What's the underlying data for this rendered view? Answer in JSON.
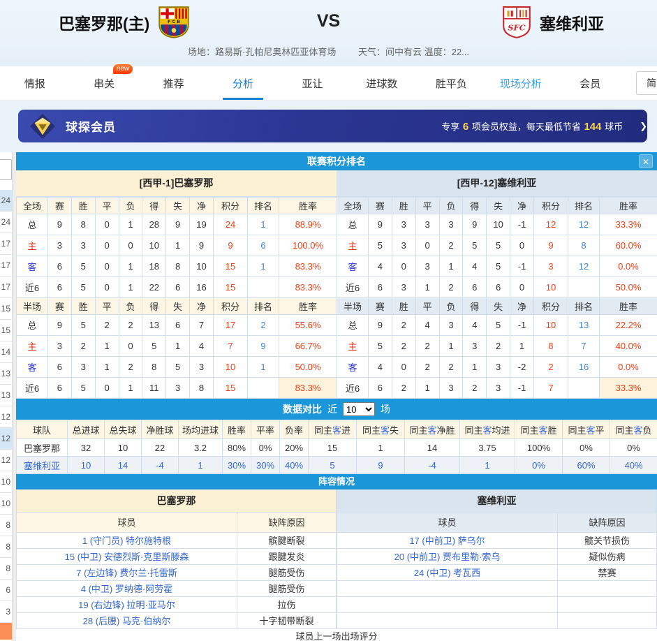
{
  "header": {
    "home_team": "巴塞罗那(主)",
    "vs": "VS",
    "away_team": "塞维利亚",
    "venue": "场地：路易斯·孔帕尼奥林匹亚体育场",
    "weather": "天气：间中有云 温度：22..."
  },
  "nav": {
    "tabs": [
      {
        "label": "情报",
        "cls": ""
      },
      {
        "label": "串关",
        "cls": "",
        "badge": "new"
      },
      {
        "label": "推荐",
        "cls": ""
      },
      {
        "label": "分析",
        "cls": "active"
      },
      {
        "label": "亚让",
        "cls": ""
      },
      {
        "label": "进球数",
        "cls": ""
      },
      {
        "label": "胜平负",
        "cls": ""
      },
      {
        "label": "现场分析",
        "cls": "live"
      },
      {
        "label": "会员",
        "cls": ""
      }
    ],
    "lang": "简"
  },
  "banner": {
    "title": "球探会员",
    "p1": "专享 ",
    "n1": "6",
    "p2": " 项会员权益，每天最低节省 ",
    "n2": "144",
    "p3": " 球币",
    "arrow": "❯"
  },
  "sidebar": {
    "items": [
      {
        "v": "24",
        "cls": "hl"
      },
      {
        "v": "24",
        "cls": ""
      },
      {
        "v": "17",
        "cls": ""
      },
      {
        "v": "17",
        "cls": ""
      },
      {
        "v": "17",
        "cls": ""
      },
      {
        "v": "15",
        "cls": ""
      },
      {
        "v": "15",
        "cls": ""
      },
      {
        "v": "14",
        "cls": ""
      },
      {
        "v": "13",
        "cls": ""
      },
      {
        "v": "13",
        "cls": ""
      },
      {
        "v": "12",
        "cls": ""
      },
      {
        "v": "12",
        "cls": "hl"
      },
      {
        "v": "12",
        "cls": ""
      },
      {
        "v": "10",
        "cls": ""
      },
      {
        "v": "10",
        "cls": ""
      },
      {
        "v": "8",
        "cls": ""
      },
      {
        "v": "8",
        "cls": ""
      },
      {
        "v": "8",
        "cls": ""
      },
      {
        "v": "6",
        "cls": ""
      },
      {
        "v": "3",
        "cls": ""
      }
    ]
  },
  "standings": {
    "title": "联赛积分排名",
    "close": "✕",
    "sides": [
      {
        "team": "[西甲-1]巴塞罗那",
        "cls": "home",
        "sections": [
          {
            "head": [
              "全场",
              "赛",
              "胜",
              "平",
              "负",
              "得",
              "失",
              "净",
              "积分",
              "排名",
              "胜率"
            ],
            "rows": [
              {
                "label": "总",
                "lcls": "",
                "nums": [
                  "9",
                  "8",
                  "0",
                  "1",
                  "28",
                  "9",
                  "19"
                ],
                "pts": "24",
                "rank": "1",
                "rate": "88.9%",
                "rcls": ""
              },
              {
                "label": "主",
                "lcls": "red",
                "nums": [
                  "3",
                  "3",
                  "0",
                  "0",
                  "10",
                  "1",
                  "9"
                ],
                "pts": "9",
                "rank": "6",
                "rate": "100.0%",
                "rcls": ""
              },
              {
                "label": "客",
                "lcls": "blue",
                "nums": [
                  "6",
                  "5",
                  "0",
                  "1",
                  "18",
                  "8",
                  "10"
                ],
                "pts": "15",
                "rank": "1",
                "rate": "83.3%",
                "rcls": ""
              },
              {
                "label": "近6",
                "lcls": "",
                "nums": [
                  "6",
                  "5",
                  "0",
                  "1",
                  "22",
                  "6",
                  "16"
                ],
                "pts": "15",
                "rank": "",
                "rate": "83.3%",
                "rcls": ""
              }
            ]
          },
          {
            "head": [
              "半场",
              "赛",
              "胜",
              "平",
              "负",
              "得",
              "失",
              "净",
              "积分",
              "排名",
              "胜率"
            ],
            "rows": [
              {
                "label": "总",
                "lcls": "",
                "nums": [
                  "9",
                  "5",
                  "2",
                  "2",
                  "13",
                  "6",
                  "7"
                ],
                "pts": "17",
                "rank": "2",
                "rate": "55.6%",
                "rcls": ""
              },
              {
                "label": "主",
                "lcls": "red",
                "nums": [
                  "3",
                  "2",
                  "1",
                  "0",
                  "5",
                  "1",
                  "4"
                ],
                "pts": "7",
                "rank": "9",
                "rate": "66.7%",
                "rcls": ""
              },
              {
                "label": "客",
                "lcls": "blue",
                "nums": [
                  "6",
                  "3",
                  "1",
                  "2",
                  "8",
                  "5",
                  "3"
                ],
                "pts": "10",
                "rank": "1",
                "rate": "50.0%",
                "rcls": ""
              },
              {
                "label": "近6",
                "lcls": "",
                "nums": [
                  "6",
                  "5",
                  "0",
                  "1",
                  "11",
                  "3",
                  "8"
                ],
                "pts": "15",
                "rank": "",
                "rate": "83.3%",
                "rcls": "cream"
              }
            ]
          }
        ]
      },
      {
        "team": "[西甲-12]塞维利亚",
        "cls": "away",
        "sections": [
          {
            "head": [
              "全场",
              "赛",
              "胜",
              "平",
              "负",
              "得",
              "失",
              "净",
              "积分",
              "排名",
              "胜率"
            ],
            "rows": [
              {
                "label": "总",
                "lcls": "",
                "nums": [
                  "9",
                  "3",
                  "3",
                  "3",
                  "9",
                  "10",
                  "-1"
                ],
                "pts": "12",
                "rank": "12",
                "rate": "33.3%",
                "rcls": ""
              },
              {
                "label": "主",
                "lcls": "red",
                "nums": [
                  "5",
                  "3",
                  "0",
                  "2",
                  "5",
                  "5",
                  "0"
                ],
                "pts": "9",
                "rank": "8",
                "rate": "60.0%",
                "rcls": ""
              },
              {
                "label": "客",
                "lcls": "blue",
                "nums": [
                  "4",
                  "0",
                  "3",
                  "1",
                  "4",
                  "5",
                  "-1"
                ],
                "pts": "3",
                "rank": "12",
                "rate": "0.0%",
                "rcls": ""
              },
              {
                "label": "近6",
                "lcls": "",
                "nums": [
                  "6",
                  "3",
                  "1",
                  "2",
                  "6",
                  "6",
                  "0"
                ],
                "pts": "10",
                "rank": "",
                "rate": "50.0%",
                "rcls": ""
              }
            ]
          },
          {
            "head": [
              "半场",
              "赛",
              "胜",
              "平",
              "负",
              "得",
              "失",
              "净",
              "积分",
              "排名",
              "胜率"
            ],
            "rows": [
              {
                "label": "总",
                "lcls": "",
                "nums": [
                  "9",
                  "2",
                  "4",
                  "3",
                  "4",
                  "5",
                  "-1"
                ],
                "pts": "10",
                "rank": "13",
                "rate": "22.2%",
                "rcls": ""
              },
              {
                "label": "主",
                "lcls": "red",
                "nums": [
                  "5",
                  "2",
                  "2",
                  "1",
                  "3",
                  "2",
                  "1"
                ],
                "pts": "8",
                "rank": "7",
                "rate": "40.0%",
                "rcls": ""
              },
              {
                "label": "客",
                "lcls": "blue",
                "nums": [
                  "4",
                  "0",
                  "2",
                  "2",
                  "1",
                  "3",
                  "-2"
                ],
                "pts": "2",
                "rank": "16",
                "rate": "0.0%",
                "rcls": ""
              },
              {
                "label": "近6",
                "lcls": "",
                "nums": [
                  "6",
                  "2",
                  "1",
                  "3",
                  "2",
                  "3",
                  "-1"
                ],
                "pts": "7",
                "rank": "",
                "rate": "33.3%",
                "rcls": "cream"
              }
            ]
          }
        ]
      }
    ]
  },
  "comparison": {
    "title": "数据对比",
    "near_label": "近",
    "rounds": "10",
    "suffix": "场",
    "head": [
      "球队",
      "总进球",
      "总失球",
      "净胜球",
      "场均进球",
      "胜率",
      "平率",
      "负率",
      "同主客进",
      "同主客失",
      "同主客净胜",
      "同主客均进",
      "同主客胜",
      "同主客平",
      "同主客负"
    ],
    "rows": [
      {
        "cls": "t1",
        "cells": [
          "巴塞罗那",
          "32",
          "10",
          "22",
          "3.2",
          "80%",
          "0%",
          "20%",
          "15",
          "1",
          "14",
          "3.75",
          "100%",
          "0%",
          "0%"
        ]
      },
      {
        "cls": "t2",
        "cells": [
          "塞维利亚",
          "10",
          "14",
          "-4",
          "1",
          "30%",
          "30%",
          "40%",
          "5",
          "9",
          "-4",
          "1",
          "0%",
          "60%",
          "40%"
        ]
      }
    ]
  },
  "lineup": {
    "title": "阵容情况",
    "sides": [
      {
        "team": "巴塞罗那",
        "cls": "home",
        "player_h": "球员",
        "reason_h": "缺阵原因",
        "rows": [
          {
            "player": "1 (守门员) 特尔施特根",
            "reason": "髌腱断裂"
          },
          {
            "player": "15 (中卫) 安德烈斯·克里斯滕森",
            "reason": "跟腱发炎"
          },
          {
            "player": "7 (左边锋) 费尔兰·托雷斯",
            "reason": "腿筋受伤"
          },
          {
            "player": "4 (中卫) 罗纳德·阿劳霍",
            "reason": "腿筋受伤"
          },
          {
            "player": "19 (右边锋) 拉明·亚马尔",
            "reason": "拉伤"
          },
          {
            "player": "28 (后腰) 马克·伯纳尔",
            "reason": "十字韧带断裂"
          }
        ]
      },
      {
        "team": "塞维利亚",
        "cls": "away",
        "player_h": "球员",
        "reason_h": "缺阵原因",
        "rows": [
          {
            "player": "17 (中前卫) 萨乌尔",
            "reason": "髋关节损伤"
          },
          {
            "player": "20 (中前卫) 贾布里勒·索乌",
            "reason": "疑似伤病"
          },
          {
            "player": "24 (中卫) 考瓦西",
            "reason": "禁赛"
          },
          {
            "player": "",
            "reason": ""
          },
          {
            "player": "",
            "reason": ""
          },
          {
            "player": "",
            "reason": ""
          }
        ]
      }
    ],
    "rating_note": "球员上一场出场评分"
  },
  "colors": {
    "accent_blue": "#1b96d8",
    "tab_active_blue": "#1880d0",
    "banner_navy": "#2b3693",
    "gold": "#ffd24d",
    "score_red": "#f04017",
    "rank_blue": "#3e86d8",
    "link_blue": "#3467cf",
    "cream_bg": "#fcf0d4",
    "lightblue_bg": "#d9e4ee",
    "new_badge_orange": "#f43a00",
    "sidebar_orange": "#fb8e54"
  }
}
